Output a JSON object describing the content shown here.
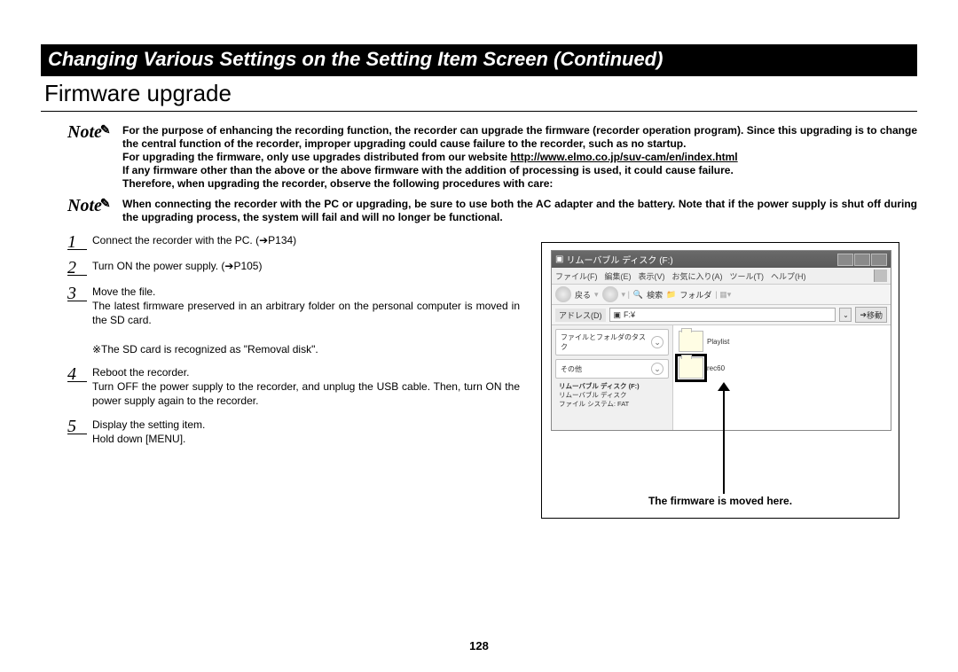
{
  "header": {
    "title": "Changing Various Settings on the Setting Item Screen (Continued)"
  },
  "section": {
    "title": "Firmware upgrade"
  },
  "notes": [
    {
      "label": "Note",
      "body": "For the purpose of enhancing the recording function, the recorder can upgrade the firmware (recorder operation program). Since this upgrading is to change the central function of the recorder, improper upgrading could cause failure to the recorder, such as no startup.\nFor upgrading the firmware, only use upgrades distributed from our website http://www.elmo.co.jp/suv-cam/en/index.html\nIf any firmware other than the above or the above firmware with the addition of processing is used, it could cause failure.\nTherefore, when upgrading the recorder, observe the following procedures with care:"
    },
    {
      "label": "Note",
      "body": "When connecting the recorder with the PC or upgrading, be sure to use both the AC adapter and the battery.    Note that if the power supply is shut off during the upgrading process, the system will fail and will no longer be functional."
    }
  ],
  "steps": [
    {
      "num": "1",
      "lines": [
        "Connect the recorder with the PC. (➔P134)"
      ]
    },
    {
      "num": "2",
      "lines": [
        "Turn ON the power supply. (➔P105)"
      ]
    },
    {
      "num": "3",
      "lines": [
        "Move the file.",
        "The latest firmware preserved in an arbitrary folder on the personal computer is moved in the SD card.",
        "",
        "※The SD card is recognized as \"Removal disk\"."
      ]
    },
    {
      "num": "4",
      "lines": [
        "Reboot the recorder.",
        "Turn OFF the power supply to the recorder, and unplug the USB cable. Then, turn ON the power supply again to the recorder."
      ]
    },
    {
      "num": "5",
      "lines": [
        "Display the setting item.",
        "Hold down [MENU]."
      ]
    }
  ],
  "figure": {
    "window_title": "リムーバブル ディスク (F:)",
    "menus": [
      "ファイル(F)",
      "編集(E)",
      "表示(V)",
      "お気に入り(A)",
      "ツール(T)",
      "ヘルプ(H)"
    ],
    "toolbar": {
      "back": "戻る",
      "search": "検索",
      "folders": "フォルダ"
    },
    "address_label": "アドレス(D)",
    "address_value": "F:¥",
    "go": "移動",
    "side_task": "ファイルとフォルダのタスク",
    "side_other": "その他",
    "side_detail_title": "リムーバブル ディスク (F:)",
    "side_detail_sub1": "リムーバブル ディスク",
    "side_detail_sub2": "ファイル システム: FAT",
    "items": [
      {
        "name": "Playlist",
        "highlight": false
      },
      {
        "name": "rec60",
        "highlight": true
      }
    ],
    "caption": "The firmware is moved here."
  },
  "page_number": "128",
  "url": "http://www.elmo.co.jp/suv-cam/en/index.html"
}
